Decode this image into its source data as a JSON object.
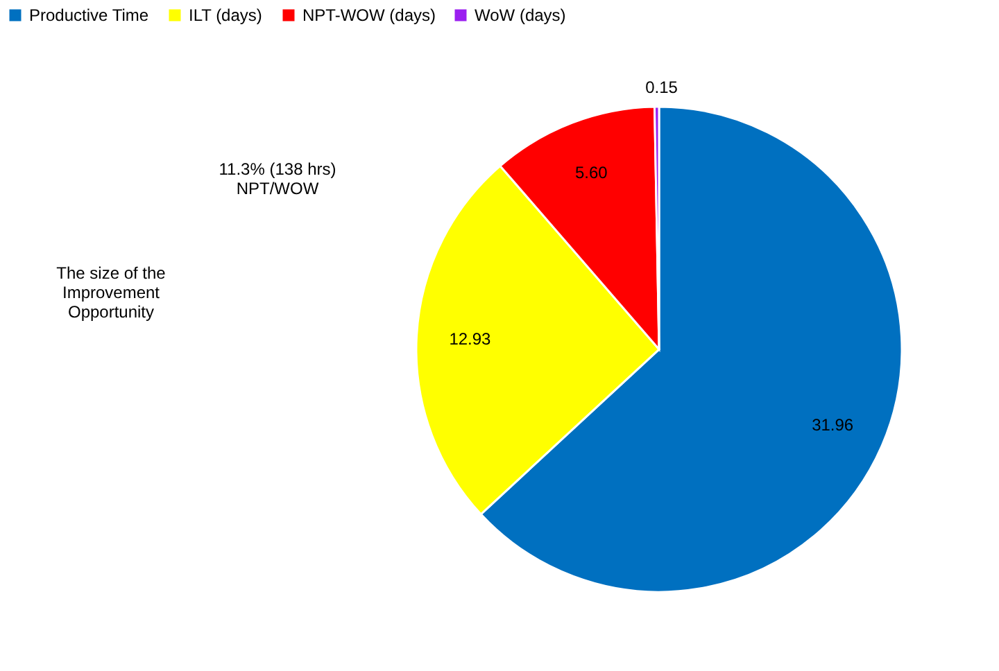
{
  "chart_data": {
    "type": "pie",
    "categories": [
      "Productive Time",
      "ILT (days)",
      "NPT-WOW (days)",
      "WoW (days)"
    ],
    "values": [
      31.96,
      12.93,
      5.6,
      0.15
    ],
    "value_labels": [
      "31.96",
      "12.93",
      "5.60",
      "0.15"
    ],
    "colors": [
      "#0070c0",
      "#ffff00",
      "#ff0000",
      "#9b1ff0"
    ],
    "legend": "top",
    "annotations": [
      "11.3% (138 hrs)\nNPT/WOW",
      "The size of the\nImprovement\nOpportunity"
    ]
  }
}
